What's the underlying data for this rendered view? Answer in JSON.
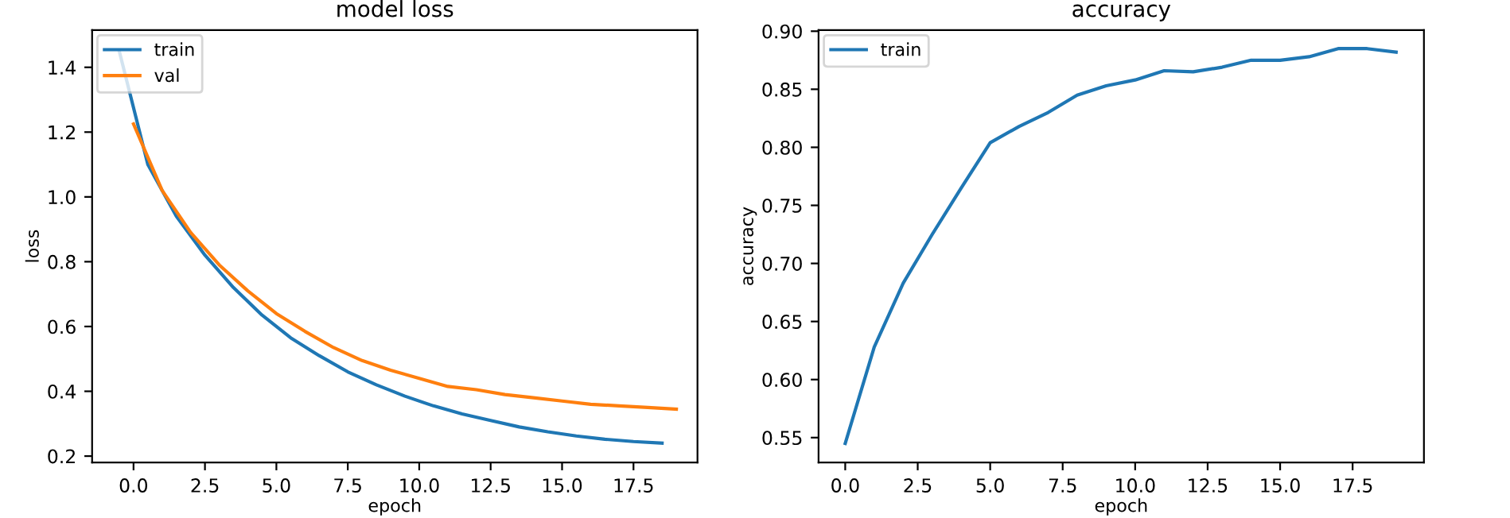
{
  "chart_data": [
    {
      "type": "line",
      "title": "model loss",
      "xlabel": "epoch",
      "ylabel": "loss",
      "xlim": [
        -1.45,
        19.74
      ],
      "ylim": [
        0.18,
        1.515
      ],
      "xticks": [
        {
          "value": 0,
          "label": "0.0"
        },
        2.5,
        {
          "value": 5,
          "label": "5.0"
        },
        7.5,
        {
          "value": 10,
          "label": "10.0"
        },
        12.5,
        {
          "value": 15,
          "label": "15.0"
        },
        17.5
      ],
      "yticks": [
        0.2,
        0.4,
        0.6,
        0.8,
        {
          "value": 1,
          "label": "1.0"
        },
        1.2,
        1.4
      ],
      "legend": "top left",
      "grid": false,
      "series": [
        {
          "name": "train",
          "color": "#1f77b4",
          "x": [
            -0.5,
            0.5,
            1.5,
            2.5,
            3.5,
            4.5,
            5.5,
            6.5,
            7.5,
            8.5,
            9.5,
            10.5,
            11.5,
            12.5,
            13.5,
            14.5,
            15.5,
            16.5,
            17.5,
            18.5
          ],
          "values": [
            1.45,
            1.1,
            0.94,
            0.82,
            0.72,
            0.635,
            0.565,
            0.51,
            0.46,
            0.42,
            0.385,
            0.355,
            0.33,
            0.31,
            0.29,
            0.275,
            0.262,
            0.252,
            0.245,
            0.24
          ]
        },
        {
          "name": "val",
          "color": "#ff7f0e",
          "x": [
            0,
            1,
            2,
            3,
            4,
            5,
            6,
            7,
            8,
            9,
            10,
            11,
            12,
            13,
            14,
            15,
            16,
            17,
            18,
            19
          ],
          "values": [
            1.225,
            1.02,
            0.89,
            0.79,
            0.71,
            0.64,
            0.585,
            0.535,
            0.495,
            0.465,
            0.44,
            0.415,
            0.405,
            0.39,
            0.38,
            0.37,
            0.36,
            0.355,
            0.35,
            0.345
          ]
        }
      ]
    },
    {
      "type": "line",
      "title": "accuracy",
      "xlabel": "epoch",
      "ylabel": "accuracy",
      "xlim": [
        -0.92,
        19.96
      ],
      "ylim": [
        0.5285,
        0.901
      ],
      "xticks": [
        {
          "value": 0,
          "label": "0.0"
        },
        2.5,
        {
          "value": 5,
          "label": "5.0"
        },
        7.5,
        {
          "value": 10,
          "label": "10.0"
        },
        12.5,
        {
          "value": 15,
          "label": "15.0"
        },
        17.5
      ],
      "yticks": [
        {
          "value": 0.55,
          "label": "0.55"
        },
        {
          "value": 0.6,
          "label": "0.60"
        },
        {
          "value": 0.65,
          "label": "0.65"
        },
        {
          "value": 0.7,
          "label": "0.70"
        },
        {
          "value": 0.75,
          "label": "0.75"
        },
        {
          "value": 0.8,
          "label": "0.80"
        },
        {
          "value": 0.85,
          "label": "0.85"
        },
        {
          "value": 0.9,
          "label": "0.90"
        }
      ],
      "legend": "top left",
      "grid": false,
      "series": [
        {
          "name": "train",
          "color": "#1f77b4",
          "x": [
            0,
            1,
            2,
            3,
            4,
            5,
            6,
            7,
            8,
            9,
            10,
            11,
            12,
            13,
            14,
            15,
            16,
            17,
            18,
            19
          ],
          "values": [
            0.545,
            0.628,
            0.683,
            0.725,
            0.765,
            0.804,
            0.818,
            0.83,
            0.845,
            0.853,
            0.858,
            0.866,
            0.865,
            0.869,
            0.875,
            0.875,
            0.878,
            0.885,
            0.885,
            0.882
          ]
        }
      ]
    }
  ]
}
